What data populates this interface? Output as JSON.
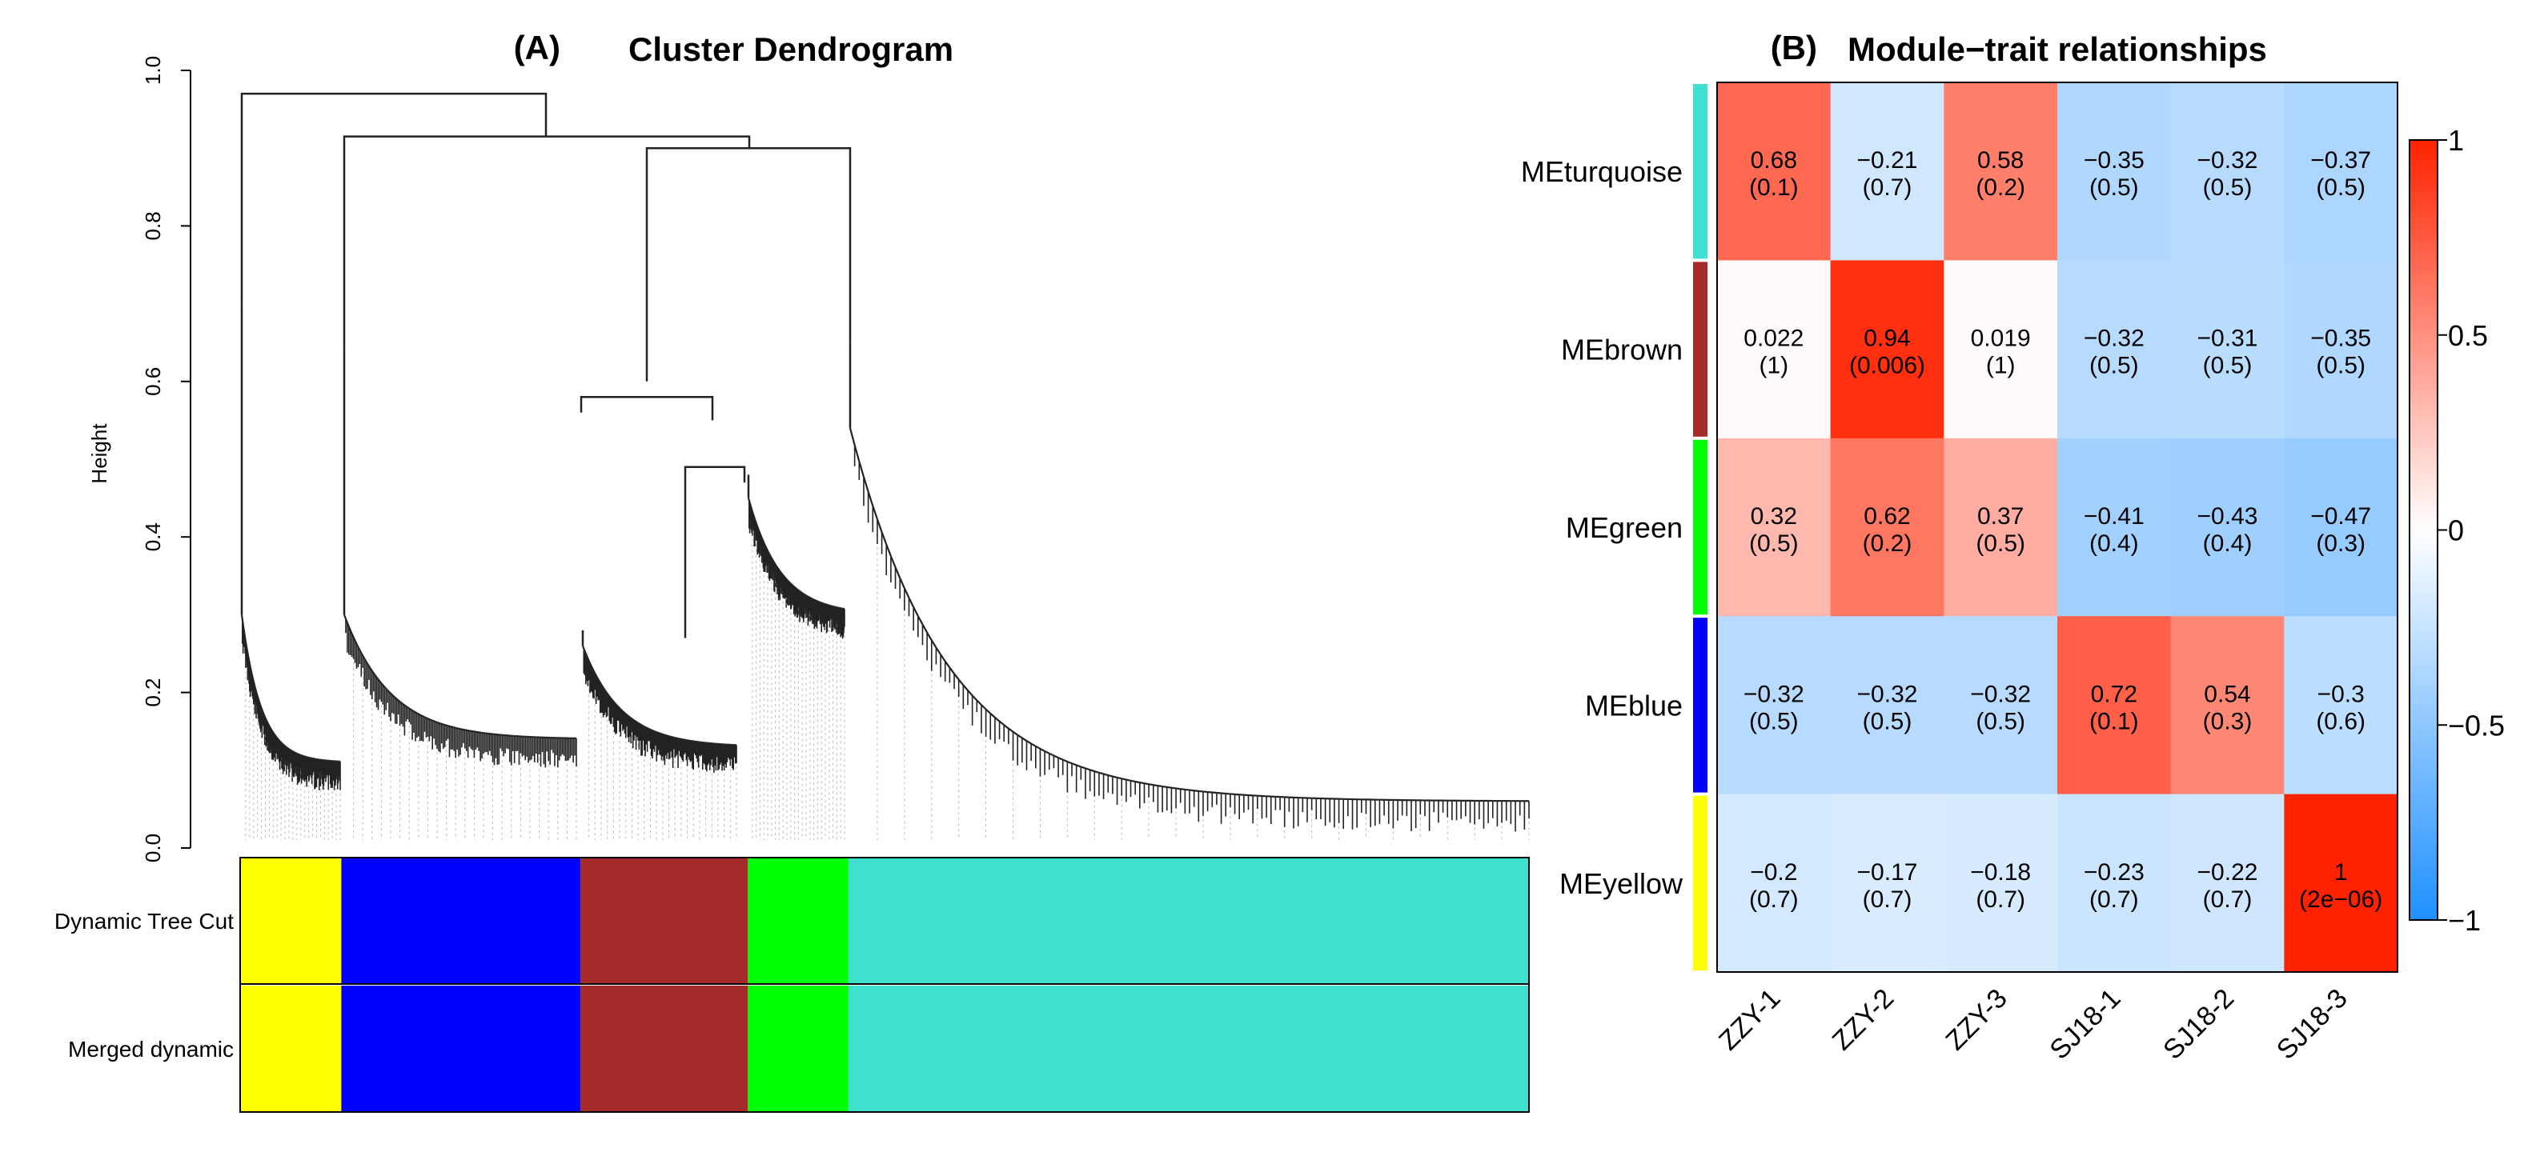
{
  "chart_data": [
    {
      "type": "other",
      "panel": "(A)",
      "title": "Cluster Dendrogram",
      "ylabel": "Height",
      "ylim": [
        0,
        1.0
      ],
      "y_ticks": [
        "0.0",
        "0.2",
        "0.4",
        "0.6",
        "0.8",
        "1.0"
      ],
      "color_bars": [
        {
          "label": "Dynamic Tree Cut",
          "segments": [
            {
              "color": "#FFFF00",
              "fraction": 0.0785
            },
            {
              "color": "#0000FF",
              "fraction": 0.1855
            },
            {
              "color": "#A52A2A",
              "fraction": 0.13
            },
            {
              "color": "#00FF00",
              "fraction": 0.078
            },
            {
              "color": "#40E0D0",
              "fraction": 0.528
            }
          ]
        },
        {
          "label": "Merged dynamic",
          "segments": [
            {
              "color": "#FFFF00",
              "fraction": 0.0785
            },
            {
              "color": "#0000FF",
              "fraction": 0.1855
            },
            {
              "color": "#A52A2A",
              "fraction": 0.13
            },
            {
              "color": "#00FF00",
              "fraction": 0.078
            },
            {
              "color": "#40E0D0",
              "fraction": 0.528
            }
          ]
        }
      ]
    },
    {
      "type": "heatmap",
      "panel": "(B)",
      "title": "Module−trait relationships",
      "rows": [
        "MEturquoise",
        "MEbrown",
        "MEgreen",
        "MEblue",
        "MEyellow"
      ],
      "row_colors": [
        "#40E0D0",
        "#A52A2A",
        "#00FF00",
        "#0000FF",
        "#FFFF00"
      ],
      "columns": [
        "ZZY-1",
        "ZZY-2",
        "ZZY-3",
        "SJ18-1",
        "SJ18-2",
        "SJ18-3"
      ],
      "values": [
        [
          0.68,
          -0.21,
          0.58,
          -0.35,
          -0.32,
          -0.37
        ],
        [
          0.022,
          0.94,
          0.019,
          -0.32,
          -0.31,
          -0.35
        ],
        [
          0.32,
          0.62,
          0.37,
          -0.41,
          -0.43,
          -0.47
        ],
        [
          -0.32,
          -0.32,
          -0.32,
          0.72,
          0.54,
          -0.3
        ],
        [
          -0.2,
          -0.17,
          -0.18,
          -0.23,
          -0.22,
          1
        ]
      ],
      "labels": [
        [
          "0.68",
          "−0.21",
          "0.58",
          "−0.35",
          "−0.32",
          "−0.37"
        ],
        [
          "0.022",
          "0.94",
          "0.019",
          "−0.32",
          "−0.31",
          "−0.35"
        ],
        [
          "0.32",
          "0.62",
          "0.37",
          "−0.41",
          "−0.43",
          "−0.47"
        ],
        [
          "−0.32",
          "−0.32",
          "−0.32",
          "0.72",
          "0.54",
          "−0.3"
        ],
        [
          "−0.2",
          "−0.17",
          "−0.18",
          "−0.23",
          "−0.22",
          "1"
        ]
      ],
      "pvalues": [
        [
          "(0.1)",
          "(0.7)",
          "(0.2)",
          "(0.5)",
          "(0.5)",
          "(0.5)"
        ],
        [
          "(1)",
          "(0.006)",
          "(1)",
          "(0.5)",
          "(0.5)",
          "(0.5)"
        ],
        [
          "(0.5)",
          "(0.2)",
          "(0.5)",
          "(0.4)",
          "(0.4)",
          "(0.3)"
        ],
        [
          "(0.5)",
          "(0.5)",
          "(0.5)",
          "(0.1)",
          "(0.3)",
          "(0.6)"
        ],
        [
          "(0.7)",
          "(0.7)",
          "(0.7)",
          "(0.7)",
          "(0.7)",
          "(2e−06)"
        ]
      ],
      "colorbar": {
        "range": [
          -1,
          1
        ],
        "ticks": [
          1,
          0.5,
          0,
          -0.5,
          -1
        ],
        "tick_labels": [
          "1",
          "0.5",
          "0",
          "−0.5",
          "−1"
        ],
        "low_color": "#1E90FF",
        "mid_color": "#FFFFFF",
        "high_color": "#FF2200"
      }
    }
  ]
}
